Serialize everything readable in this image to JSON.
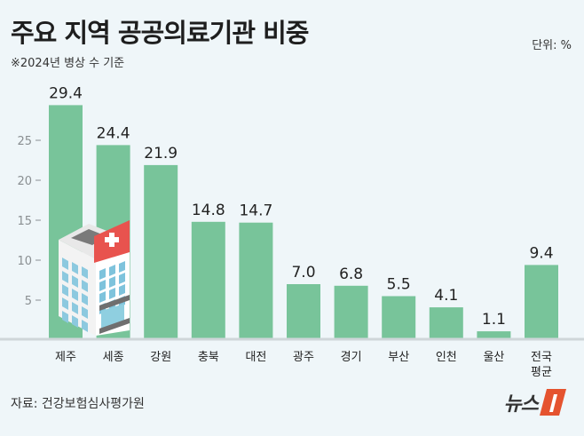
{
  "title": "주요 지역 공공의료기관 비중",
  "subtitle": "※2024년 병상 수 기준",
  "unit": "단위: %",
  "source": "자료: 건강보험심사평가원",
  "logo": "뉴스1",
  "colors": {
    "bar": "#78c49a",
    "background": "#eff6f9",
    "logo_accent": "#e5532f"
  },
  "chart_data": {
    "type": "bar",
    "categories": [
      "제주",
      "세종",
      "강원",
      "충북",
      "대전",
      "광주",
      "경기",
      "부산",
      "인천",
      "울산",
      "전국\n평균"
    ],
    "values": [
      29.4,
      24.4,
      21.9,
      14.8,
      14.7,
      7.0,
      6.8,
      5.5,
      4.1,
      1.1,
      9.4
    ],
    "value_labels": [
      "29.4",
      "24.4",
      "21.9",
      "14.8",
      "14.7",
      "7.0",
      "6.8",
      "5.5",
      "4.1",
      "1.1",
      "9.4"
    ],
    "yticks": [
      5,
      10,
      15,
      20,
      25
    ],
    "ylim": [
      0,
      30
    ],
    "xlabel": "",
    "ylabel": "",
    "grid": false
  }
}
